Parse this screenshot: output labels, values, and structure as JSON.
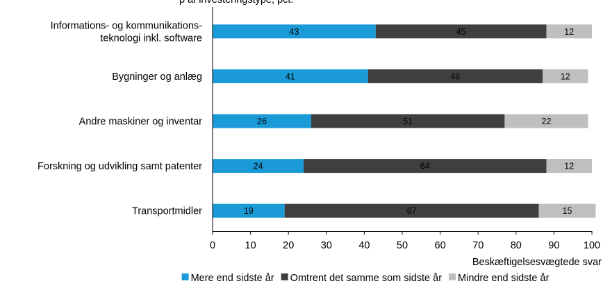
{
  "chart_data": {
    "type": "bar",
    "orientation": "horizontal",
    "stacked": true,
    "title": "p af investeringstype, pct.",
    "categories": [
      [
        "Informations- og kommunikations-",
        "teknologi inkl. software"
      ],
      [
        "Bygninger og anlæg"
      ],
      [
        "Andre maskiner og inventar"
      ],
      [
        "Forskning og udvikling samt patenter"
      ],
      [
        "Transportmidler"
      ]
    ],
    "series": [
      {
        "name": "Mere end sidste år",
        "color": "#1a9ad6",
        "label_color": "#000000",
        "values": [
          43,
          41,
          26,
          24,
          19
        ]
      },
      {
        "name": "Omtrent det samme som sidste år",
        "color": "#3f3f3f",
        "label_color": "#000000",
        "values": [
          45,
          46,
          51,
          64,
          67
        ]
      },
      {
        "name": "Mindre end sidste år",
        "color": "#bfbfbf",
        "label_color": "#000000",
        "values": [
          12,
          12,
          22,
          12,
          15
        ]
      }
    ],
    "xlim": [
      0,
      100
    ],
    "xticks": [
      0,
      10,
      20,
      30,
      40,
      50,
      60,
      70,
      80,
      90,
      100
    ],
    "xlabel": "Beskæftigelsesvægtede svar",
    "grid": false,
    "legend_position": "bottom"
  }
}
